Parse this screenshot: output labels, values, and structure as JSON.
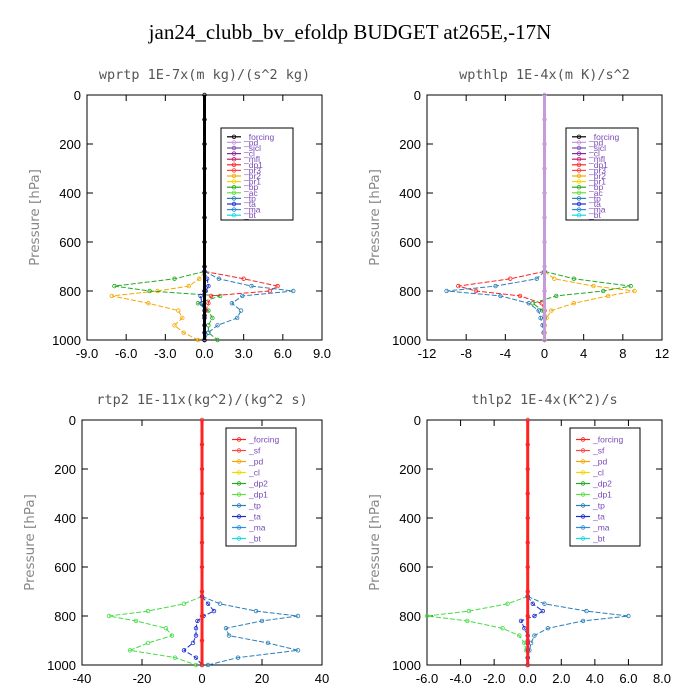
{
  "page_title": "jan24_clubb_bv_efoldp  BUDGET at265E,-17N",
  "chart_data": [
    {
      "type": "line",
      "title": "wprtp   1E-7x(m kg)/(s^2 kg)",
      "ylabel": "Pressure [hPa]",
      "xlim": [
        -9,
        9
      ],
      "ylim": [
        1000,
        0
      ],
      "xticks": [
        "-9.0",
        "-6.0",
        "-3.0",
        "0.0",
        "3.0",
        "6.0",
        "9.0"
      ],
      "yticks": [
        "0",
        "200",
        "400",
        "600",
        "800",
        "1000"
      ],
      "legend_position": "top-right",
      "legend": [
        "_forcing",
        "_pd",
        "_sicl",
        "_cl",
        "_mfl",
        "_dp1",
        "_pr3",
        "_pr2",
        "_pr1",
        "_bp",
        "_ac",
        "_tp",
        "_ta",
        "_ma",
        "_bt"
      ],
      "series": [
        {
          "name": "_pr1",
          "color": "#f5a800",
          "y": [
            720,
            750,
            780,
            800,
            820,
            850,
            880,
            910,
            940,
            970,
            1000
          ],
          "x": [
            0,
            -0.4,
            -1.2,
            -3.6,
            -7.1,
            -4.3,
            -2.0,
            -1.7,
            -2.3,
            -1.6,
            -0.5
          ]
        },
        {
          "name": "_bp",
          "color": "#22aa22",
          "y": [
            720,
            750,
            780,
            800,
            820,
            850,
            880,
            910,
            940,
            970,
            1000
          ],
          "x": [
            0,
            -2.3,
            -6.9,
            -4.2,
            1.2,
            -0.5,
            0.3,
            0.6,
            0.3,
            0.3,
            1.0
          ]
        },
        {
          "name": "_pr3",
          "color": "#ff2222",
          "y": [
            720,
            750,
            780,
            800,
            820,
            850,
            880,
            910,
            940,
            970,
            1000
          ],
          "x": [
            0,
            3.0,
            5.6,
            5.0,
            0.5,
            0.3,
            0.1,
            0,
            0,
            0,
            0
          ]
        },
        {
          "name": "_tp",
          "color": "#2a7fb8",
          "y": [
            720,
            750,
            780,
            800,
            820,
            850,
            880,
            910,
            940,
            970,
            1000
          ],
          "x": [
            0,
            1.1,
            3.6,
            6.8,
            2.9,
            2.1,
            2.8,
            2.5,
            1.0,
            0.3,
            0
          ]
        },
        {
          "name": "_ma",
          "color": "#1a2fd0",
          "y": [
            720,
            750,
            780,
            800,
            820,
            850,
            880,
            910,
            940,
            970,
            1000
          ],
          "x": [
            0,
            0.2,
            0.3,
            0.1,
            -0.3,
            -0.2,
            0,
            0,
            0,
            0,
            0
          ]
        },
        {
          "name": "_forcing",
          "color": "#000000",
          "y": [
            0,
            100,
            200,
            300,
            400,
            500,
            600,
            700,
            800,
            900,
            1000
          ],
          "x": [
            0,
            0,
            0,
            0,
            0,
            0,
            0,
            0,
            0,
            0,
            0
          ]
        }
      ]
    },
    {
      "type": "line",
      "title": "wpthlp   1E-4x(m K)/s^2",
      "ylabel": "Pressure [hPa]",
      "xlim": [
        -12,
        12
      ],
      "ylim": [
        1000,
        0
      ],
      "xticks": [
        "-12",
        "-8",
        "-4",
        "0",
        "4",
        "8",
        "12"
      ],
      "yticks": [
        "0",
        "200",
        "400",
        "600",
        "800",
        "1000"
      ],
      "legend_position": "top-right",
      "legend": [
        "_forcing",
        "_pd",
        "_sicl",
        "_cl",
        "_mfl",
        "_dp1",
        "_pr3",
        "_pr2",
        "_pr1",
        "_bp",
        "_ac",
        "_tp",
        "_ta",
        "_ma",
        "_bt"
      ],
      "series": [
        {
          "name": "_pr3",
          "color": "#ff2222",
          "y": [
            720,
            750,
            780,
            800,
            820,
            850,
            880,
            910,
            940,
            970,
            1000
          ],
          "x": [
            0,
            -3.5,
            -8.8,
            -7.0,
            -2.5,
            -0.3,
            0,
            0,
            0,
            0,
            0
          ]
        },
        {
          "name": "_bp",
          "color": "#22aa22",
          "y": [
            720,
            750,
            780,
            800,
            820,
            850,
            880,
            910,
            940,
            970,
            1000
          ],
          "x": [
            0,
            3.0,
            8.8,
            6.0,
            1.2,
            -1.2,
            -0.2,
            0,
            0,
            0,
            0
          ]
        },
        {
          "name": "_pr1",
          "color": "#f5a800",
          "y": [
            720,
            750,
            780,
            800,
            820,
            850,
            880,
            910,
            940,
            970,
            1000
          ],
          "x": [
            0,
            1.0,
            5.0,
            9.2,
            6.5,
            3.0,
            0.7,
            0.2,
            0,
            0,
            0
          ]
        },
        {
          "name": "_tp",
          "color": "#2a7fb8",
          "y": [
            720,
            750,
            780,
            800,
            820,
            850,
            880,
            910,
            940,
            970,
            1000
          ],
          "x": [
            0,
            -0.8,
            -5.0,
            -10.0,
            -4.5,
            -1.6,
            -0.6,
            -0.4,
            -0.2,
            -0.1,
            0
          ]
        },
        {
          "name": "_pd",
          "color": "#c79ad8",
          "y": [
            0,
            100,
            200,
            300,
            400,
            500,
            600,
            700,
            800,
            900,
            1000
          ],
          "x": [
            0,
            0,
            0,
            0,
            0,
            0,
            0,
            0,
            0,
            0,
            0
          ]
        }
      ]
    },
    {
      "type": "line",
      "title": "rtp2   1E-11x(kg^2)/(kg^2 s)",
      "ylabel": "Pressure [hPa]",
      "xlim": [
        -40,
        40
      ],
      "ylim": [
        1000,
        0
      ],
      "xticks": [
        "-40",
        "-20",
        "0",
        "20",
        "40"
      ],
      "yticks": [
        "0",
        "200",
        "400",
        "600",
        "800",
        "1000"
      ],
      "legend_position": "top-right",
      "legend": [
        "_forcing",
        "_sf",
        "_pd",
        "_cl",
        "_dp2",
        "_dp1",
        "_tp",
        "_ta",
        "_ma",
        "_bt"
      ],
      "series": [
        {
          "name": "_dp1",
          "color": "#44dd44",
          "y": [
            720,
            750,
            780,
            800,
            820,
            850,
            880,
            910,
            940,
            970,
            1000
          ],
          "x": [
            0,
            -6.0,
            -18.0,
            -31.0,
            -22.0,
            -12.0,
            -10.0,
            -18.0,
            -24.0,
            -9.0,
            -2.0
          ]
        },
        {
          "name": "_tp",
          "color": "#2a7fb8",
          "y": [
            720,
            750,
            780,
            800,
            820,
            850,
            880,
            910,
            940,
            970,
            1000
          ],
          "x": [
            0,
            6.0,
            18.0,
            32.0,
            20.0,
            8.0,
            9.0,
            22.0,
            32.0,
            12.0,
            2.0
          ]
        },
        {
          "name": "_ta",
          "color": "#1a2fd0",
          "y": [
            720,
            750,
            780,
            800,
            820,
            850,
            880,
            910,
            940,
            970,
            1000
          ],
          "x": [
            0,
            2.0,
            4.0,
            0.5,
            -1.5,
            -2.0,
            -2.0,
            -3.0,
            -6.0,
            -2.0,
            0
          ]
        },
        {
          "name": "_forcing",
          "color": "#ff2222",
          "y": [
            0,
            100,
            200,
            300,
            400,
            500,
            600,
            700,
            800,
            900,
            1000
          ],
          "x": [
            0,
            0,
            0,
            0,
            0,
            0,
            0,
            0,
            0,
            0,
            0
          ]
        }
      ]
    },
    {
      "type": "line",
      "title": "thlp2   1E-4x(K^2)/s",
      "ylabel": "Pressure [hPa]",
      "xlim": [
        -6,
        8
      ],
      "ylim": [
        1000,
        0
      ],
      "xticks": [
        "-6.0",
        "-4.0",
        "-2.0",
        "0.0",
        "2.0",
        "4.0",
        "6.0",
        "8.0"
      ],
      "yticks": [
        "0",
        "200",
        "400",
        "600",
        "800",
        "1000"
      ],
      "legend_position": "top-right",
      "legend": [
        "_forcing",
        "_sf",
        "_pd",
        "_cl",
        "_dp2",
        "_dp1",
        "_tp",
        "_ta",
        "_ma",
        "_bt"
      ],
      "series": [
        {
          "name": "_dp1",
          "color": "#44dd44",
          "y": [
            720,
            750,
            780,
            800,
            820,
            850,
            880,
            910,
            940,
            970,
            1000
          ],
          "x": [
            0,
            -1.2,
            -3.5,
            -6.0,
            -3.6,
            -1.5,
            -0.5,
            -0.2,
            -0.1,
            0,
            0
          ]
        },
        {
          "name": "_tp",
          "color": "#2a7fb8",
          "y": [
            720,
            750,
            780,
            800,
            820,
            850,
            880,
            910,
            940,
            970,
            1000
          ],
          "x": [
            0,
            1.0,
            3.5,
            6.0,
            3.3,
            1.2,
            0.4,
            0.2,
            0.1,
            0,
            0
          ]
        },
        {
          "name": "_ta",
          "color": "#1a2fd0",
          "y": [
            720,
            750,
            780,
            800,
            820,
            850,
            880,
            910,
            940,
            970,
            1000
          ],
          "x": [
            0,
            0.3,
            0.9,
            0.4,
            -0.4,
            -0.2,
            0,
            0,
            0,
            0,
            0
          ]
        },
        {
          "name": "_forcing",
          "color": "#ff2222",
          "y": [
            0,
            100,
            200,
            300,
            400,
            500,
            600,
            700,
            800,
            900,
            1000
          ],
          "x": [
            0,
            0,
            0,
            0,
            0,
            0,
            0,
            0,
            0,
            0,
            0
          ]
        }
      ]
    }
  ],
  "legend_colors": {
    "_forcing": "#000000",
    "_pd": "#c79ad8",
    "_sicl": "#7a4ab8",
    "_cl": "#8a2a9a",
    "_mfl": "#c71a6a",
    "_dp1": "#ff2222",
    "_pr3": "#ff4444",
    "_pr2": "#f5a800",
    "_pr1": "#f2d800",
    "_bp": "#22aa22",
    "_ac": "#66dd44",
    "_tp": "#2a7fb8",
    "_ta": "#1a2fd0",
    "_ma": "#2a8fd8",
    "_bt": "#18d8e0",
    "_sf": "#ff4444",
    "_dp2": "#22aa22"
  },
  "legend_colors_bottom": {
    "_forcing": "#ff2222",
    "_sf": "#ff4444",
    "_pd": "#f5a800",
    "_cl": "#f2d800",
    "_dp2": "#22aa22",
    "_dp1": "#66dd44",
    "_tp": "#2a7fb8",
    "_ta": "#1a2fd0",
    "_ma": "#2a8fd8",
    "_bt": "#18d8e0"
  }
}
